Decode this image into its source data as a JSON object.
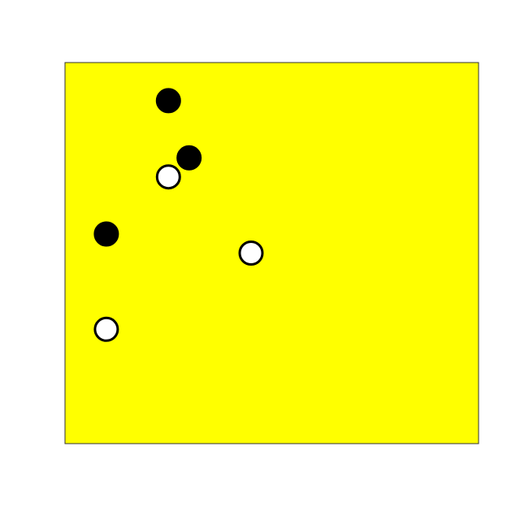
{
  "board": {
    "color": "#ffff00",
    "border_color": "#333333",
    "cols": 20,
    "rows": 20
  },
  "stone_colors": {
    "black": "#000000",
    "white": "#ffffff"
  },
  "stones": [
    {
      "color": "black",
      "col": 5,
      "row": 2
    },
    {
      "color": "black",
      "col": 6,
      "row": 5
    },
    {
      "color": "white",
      "col": 5,
      "row": 6
    },
    {
      "color": "black",
      "col": 2,
      "row": 9
    },
    {
      "color": "white",
      "col": 9,
      "row": 10
    },
    {
      "color": "white",
      "col": 2,
      "row": 14
    }
  ]
}
